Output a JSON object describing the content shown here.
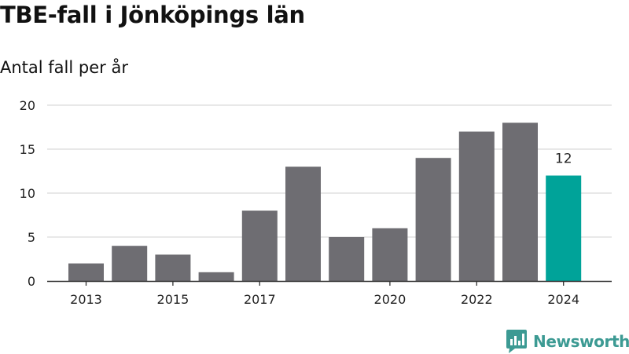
{
  "chart_data": {
    "type": "bar",
    "title": "TBE-fall i Jönköpings län",
    "subtitle": "Antal fall per år",
    "xlabel": "",
    "ylabel": "",
    "categories": [
      "2013",
      "2014",
      "2015",
      "2016",
      "2017",
      "2018",
      "2019",
      "2020",
      "2021",
      "2022",
      "2023",
      "2024"
    ],
    "values": [
      2,
      4,
      3,
      1,
      8,
      13,
      5,
      6,
      14,
      17,
      18,
      12
    ],
    "x_tick_labels": [
      "2013",
      "2015",
      "2017",
      "2020",
      "2022",
      "2024"
    ],
    "y_ticks": [
      "0",
      "5",
      "10",
      "15",
      "20"
    ],
    "ylim": [
      0,
      20
    ],
    "grid": true,
    "highlight_category": "2024",
    "data_labels": [
      {
        "category": "2024",
        "text": "12"
      }
    ],
    "colors": {
      "bar": "#6e6d72",
      "highlight": "#00a399",
      "grid": "#d9d9d9",
      "axis": "#333333",
      "text": "#222222"
    }
  },
  "branding": {
    "label": "Newsworthy",
    "icon": "newsworthy-logo-icon",
    "color": "#3c9a93"
  }
}
